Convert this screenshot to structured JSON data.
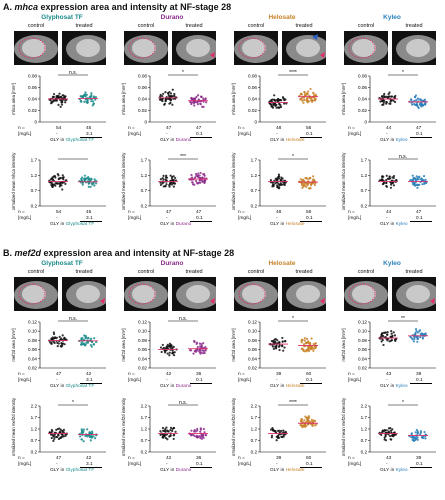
{
  "sections": [
    {
      "letter": "A.",
      "gene": "mhca",
      "suffix": " expression area and intensity at NF-stage 28",
      "image_labels": [
        "control",
        "treated"
      ],
      "panels": [
        {
          "title": "Glyphosat TF",
          "color": "#1a8a8a",
          "product_label": "Glyphosat TF",
          "area": {
            "ylabel": "mhca area [mm²]",
            "ticks": [
              "0.08",
              "0.06",
              "0.04",
              "0.02",
              "0"
            ],
            "sig": "n.s.",
            "ctrl_mean": 0.04,
            "trt_mean": 0.041
          },
          "inten": {
            "ylabel": "Normalized mean mhca intensity",
            "ticks": [
              "1.7",
              "1.2",
              "0.7",
              "0.2"
            ],
            "sig": "",
            "ctrl_mean": 1.0,
            "trt_mean": 0.99
          },
          "n": [
            "54",
            "45"
          ],
          "dose": [
            "-",
            "3.1"
          ]
        },
        {
          "title": "Durano",
          "color": "#8b2a8b",
          "product_label": "Durano",
          "area": {
            "ylabel": "mhca area [mm²]",
            "ticks": [
              "0.08",
              "0.06",
              "0.04",
              "0.02",
              "0"
            ],
            "sig": "*",
            "ctrl_mean": 0.042,
            "trt_mean": 0.037
          },
          "inten": {
            "ylabel": "Normalized mean mhca intensity",
            "ticks": [
              "1.7",
              "1.2",
              "0.7",
              "0.2"
            ],
            "sig": "***",
            "ctrl_mean": 1.0,
            "trt_mean": 1.08
          },
          "n": [
            "47",
            "47"
          ],
          "dose": [
            "-",
            "0.1"
          ]
        },
        {
          "title": "Helosate",
          "color": "#c8822a",
          "product_label": "Helosate",
          "area": {
            "ylabel": "mhca area [mm²]",
            "ticks": [
              "0.08",
              "0.06",
              "0.04",
              "0.02",
              "0"
            ],
            "sig": "****",
            "ctrl_mean": 0.034,
            "trt_mean": 0.044
          },
          "inten": {
            "ylabel": "Normalized mean mhca intensity",
            "ticks": [
              "1.7",
              "1.2",
              "0.7",
              "0.2"
            ],
            "sig": "*",
            "ctrl_mean": 1.0,
            "trt_mean": 0.98
          },
          "n": [
            "48",
            "56"
          ],
          "dose": [
            "-",
            "0.1"
          ]
        },
        {
          "title": "Kyleo",
          "color": "#2a7fb8",
          "product_label": "Kyleo",
          "area": {
            "ylabel": "mhca area [mm²]",
            "ticks": [
              "0.08",
              "0.06",
              "0.04",
              "0.02",
              "0"
            ],
            "sig": "*",
            "ctrl_mean": 0.04,
            "trt_mean": 0.035
          },
          "inten": {
            "ylabel": "Normalized mean mhca intensity",
            "ticks": [
              "1.7",
              "1.2",
              "0.7",
              "0.2"
            ],
            "sig": "n.s.",
            "ctrl_mean": 1.0,
            "trt_mean": 1.0
          },
          "n": [
            "44",
            "47"
          ],
          "dose": [
            "-",
            "0.1"
          ]
        }
      ]
    },
    {
      "letter": "B.",
      "gene": "mef2d",
      "suffix": " expression area and intensity at NF-stage 28",
      "image_labels": [
        "control",
        "treated"
      ],
      "panels": [
        {
          "title": "Glyphosat TF",
          "color": "#1a8a8a",
          "product_label": "Glyphosat TF",
          "area": {
            "ylabel": "mef2d area [mm²]",
            "ticks": [
              "0.12",
              "0.10",
              "0.08",
              "0.06",
              "0.04",
              "0.02"
            ],
            "sig": "n.s.",
            "ctrl_mean": 0.08,
            "trt_mean": 0.079
          },
          "inten": {
            "ylabel": "Normalized mean mef2d intensity",
            "ticks": [
              "2.2",
              "1.7",
              "1.2",
              "0.7",
              "0.2"
            ],
            "sig": "*",
            "ctrl_mean": 1.0,
            "trt_mean": 0.96
          },
          "n": [
            "47",
            "42"
          ],
          "dose": [
            "-",
            "3.1"
          ]
        },
        {
          "title": "Durano",
          "color": "#8b2a8b",
          "product_label": "Durano",
          "area": {
            "ylabel": "mef2d area [mm²]",
            "ticks": [
              "0.12",
              "0.10",
              "0.08",
              "0.06",
              "0.04",
              "0.02"
            ],
            "sig": "n.s.",
            "ctrl_mean": 0.06,
            "trt_mean": 0.062
          },
          "inten": {
            "ylabel": "Normalized mean mef2d intensity",
            "ticks": [
              "2.2",
              "1.7",
              "1.2",
              "0.7",
              "0.2"
            ],
            "sig": "n.s.",
            "ctrl_mean": 1.0,
            "trt_mean": 1.0
          },
          "n": [
            "42",
            "36"
          ],
          "dose": [
            "-",
            "0.1"
          ]
        },
        {
          "title": "Helosate",
          "color": "#c8822a",
          "product_label": "Helosate",
          "area": {
            "ylabel": "mef2d area [mm²]",
            "ticks": [
              "0.12",
              "0.10",
              "0.08",
              "0.06",
              "0.04",
              "0.02"
            ],
            "sig": "*",
            "ctrl_mean": 0.072,
            "trt_mean": 0.069
          },
          "inten": {
            "ylabel": "Normalized mean mef2d intensity",
            "ticks": [
              "2.2",
              "1.7",
              "1.2",
              "0.7",
              "0.2"
            ],
            "sig": "****",
            "ctrl_mean": 1.0,
            "trt_mean": 1.45
          },
          "n": [
            "39",
            "60"
          ],
          "dose": [
            "-",
            "0.1"
          ]
        },
        {
          "title": "Kyleo",
          "color": "#2a7fb8",
          "product_label": "Kyleo",
          "area": {
            "ylabel": "mef2d area [mm²]",
            "ticks": [
              "0.12",
              "0.10",
              "0.08",
              "0.06",
              "0.04",
              "0.02"
            ],
            "sig": "**",
            "ctrl_mean": 0.085,
            "trt_mean": 0.09
          },
          "inten": {
            "ylabel": "Normalized mean mef2d intensity",
            "ticks": [
              "2.2",
              "1.7",
              "1.2",
              "0.7",
              "0.2"
            ],
            "sig": "*",
            "ctrl_mean": 1.0,
            "trt_mean": 0.92
          },
          "n": [
            "43",
            "39"
          ],
          "dose": [
            "-",
            "0.1"
          ]
        }
      ]
    }
  ],
  "row_labels": {
    "n": "n =",
    "unit": "[mg/L]",
    "gly": "GLY",
    "in": "in"
  },
  "chart_data": {
    "type": "scatter",
    "description_free": true,
    "panels": [
      {
        "section": "A",
        "product": "Glyphosat TF",
        "measure": "mhca area",
        "ylim": [
          0,
          0.08
        ],
        "means": [
          0.04,
          0.041
        ],
        "significance": "n.s.",
        "n": [
          54,
          45
        ]
      },
      {
        "section": "A",
        "product": "Durano",
        "measure": "mhca area",
        "ylim": [
          0,
          0.08
        ],
        "means": [
          0.042,
          0.037
        ],
        "significance": "*",
        "n": [
          47,
          47
        ]
      },
      {
        "section": "A",
        "product": "Helosate",
        "measure": "mhca area",
        "ylim": [
          0,
          0.08
        ],
        "means": [
          0.034,
          0.044
        ],
        "significance": "****",
        "n": [
          48,
          56
        ]
      },
      {
        "section": "A",
        "product": "Kyleo",
        "measure": "mhca area",
        "ylim": [
          0,
          0.08
        ],
        "means": [
          0.04,
          0.035
        ],
        "significance": "*",
        "n": [
          44,
          47
        ]
      },
      {
        "section": "B",
        "product": "Glyphosat TF",
        "measure": "mef2d area",
        "ylim": [
          0.02,
          0.12
        ],
        "means": [
          0.08,
          0.079
        ],
        "significance": "n.s.",
        "n": [
          47,
          42
        ]
      },
      {
        "section": "B",
        "product": "Durano",
        "measure": "mef2d area",
        "ylim": [
          0.02,
          0.12
        ],
        "means": [
          0.06,
          0.062
        ],
        "significance": "n.s.",
        "n": [
          42,
          36
        ]
      },
      {
        "section": "B",
        "product": "Helosate",
        "measure": "mef2d area",
        "ylim": [
          0.02,
          0.12
        ],
        "means": [
          0.072,
          0.069
        ],
        "significance": "*",
        "n": [
          39,
          60
        ]
      },
      {
        "section": "B",
        "product": "Kyleo",
        "measure": "mef2d area",
        "ylim": [
          0.02,
          0.12
        ],
        "means": [
          0.085,
          0.09
        ],
        "significance": "**",
        "n": [
          43,
          39
        ]
      }
    ]
  }
}
